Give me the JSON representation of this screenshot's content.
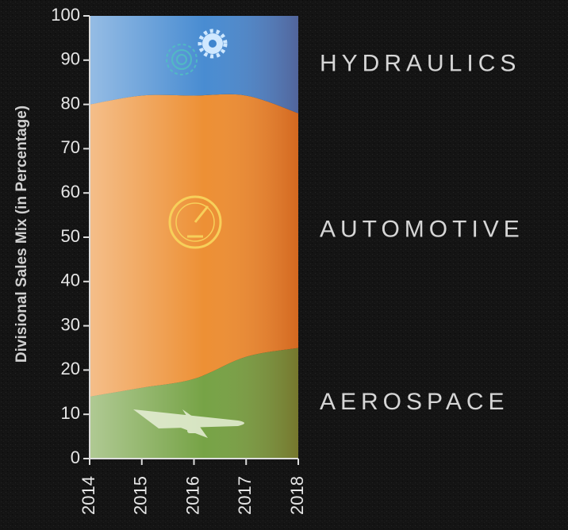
{
  "chart_data": {
    "type": "stacked_area",
    "y_axis_label": "Divisional Sales Mix (in Percentage)",
    "categories": [
      "2014",
      "2015",
      "2016",
      "2017",
      "2018"
    ],
    "series": [
      {
        "name": "AEROSPACE",
        "color": "#6f9e3c",
        "values": [
          14,
          16,
          18,
          23,
          25
        ]
      },
      {
        "name": "AUTOMOTIVE",
        "color": "#ec8a2a",
        "values": [
          66,
          66,
          64,
          59,
          53
        ]
      },
      {
        "name": "HYDRAULICS",
        "color": "#3f86cf",
        "values": [
          20,
          18,
          18,
          18,
          22
        ]
      }
    ],
    "ylim": [
      0,
      100
    ],
    "yticks": [
      0,
      10,
      20,
      30,
      40,
      50,
      60,
      70,
      80,
      90,
      100
    ]
  }
}
